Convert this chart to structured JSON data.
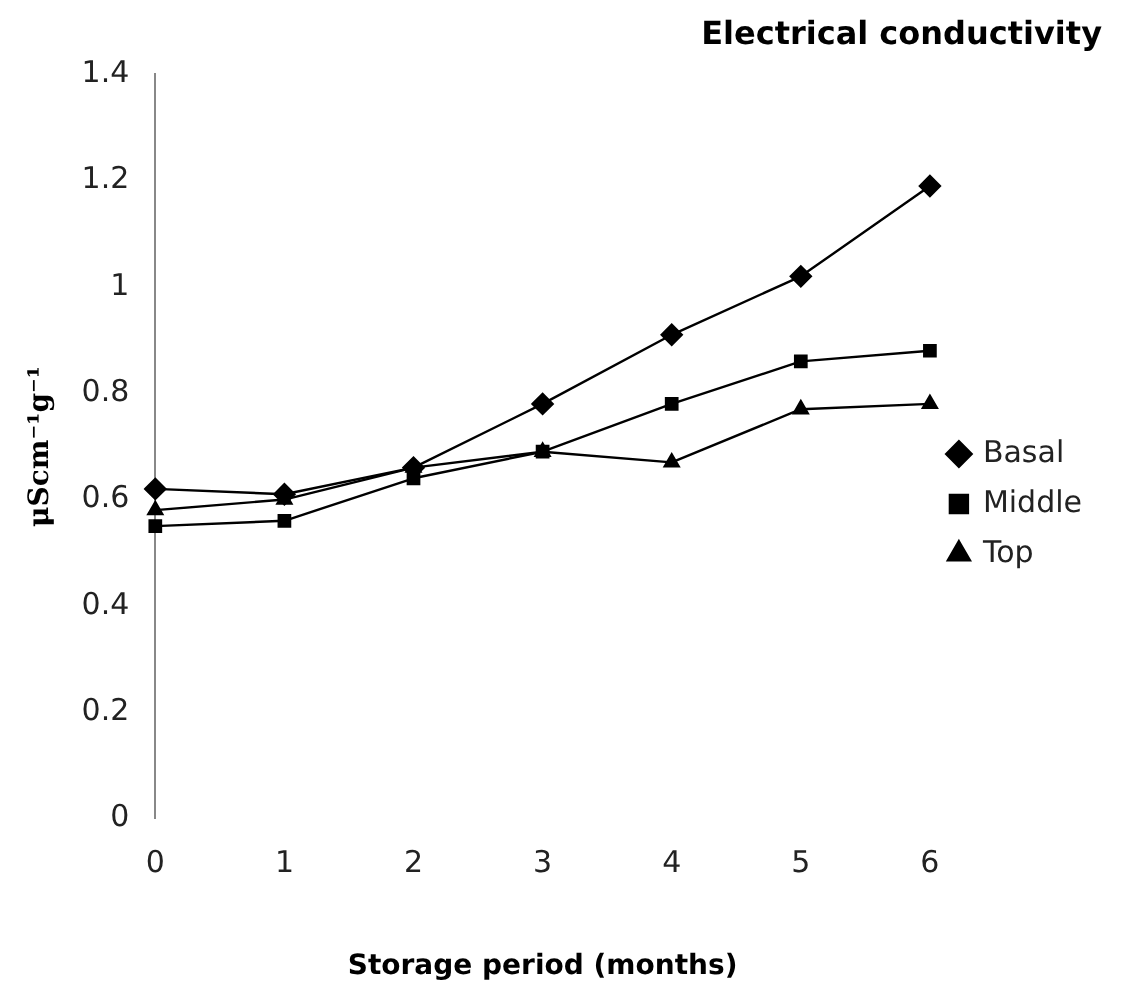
{
  "chart_data": {
    "type": "line",
    "title": "Electrical conductivity",
    "xlabel": "Storage period (months)",
    "ylabel": "μScm⁻¹g⁻¹",
    "categories": [
      "0",
      "1",
      "2",
      "3",
      "4",
      "5",
      "6"
    ],
    "series": [
      {
        "name": "Basal",
        "color": "#000000",
        "marker": "diamond",
        "values": [
          0.62,
          0.61,
          0.66,
          0.78,
          0.91,
          1.02,
          1.19
        ]
      },
      {
        "name": "Middle",
        "color": "#000000",
        "marker": "square",
        "values": [
          0.55,
          0.56,
          0.64,
          0.69,
          0.78,
          0.86,
          0.88
        ]
      },
      {
        "name": "Top",
        "color": "#000000",
        "marker": "triangle",
        "values": [
          0.58,
          0.6,
          0.66,
          0.69,
          0.67,
          0.77,
          0.78
        ]
      }
    ],
    "ylim": [
      0,
      1.4
    ],
    "yticks": [
      0,
      0.2,
      0.4,
      0.6,
      0.8,
      1,
      1.2,
      1.4
    ],
    "grid": false,
    "legend": "right",
    "line_style": "solid"
  }
}
